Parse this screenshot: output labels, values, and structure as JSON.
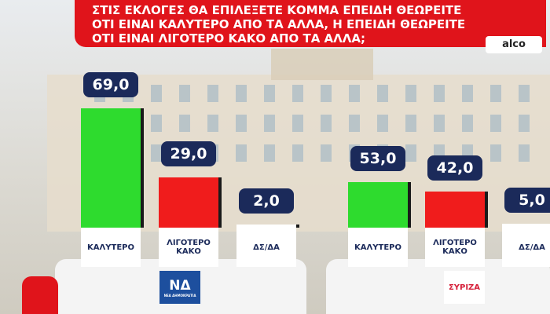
{
  "chart_data": {
    "type": "bar",
    "title": [
      "ΣΤΙΣ ΕΚΛΟΓΕΣ ΘΑ ΕΠΙΛΕΞΕΤΕ ΚΟΜΜΑ ΕΠΕΙΔΗ ΘΕΩΡΕΙΤΕ",
      "ΟΤΙ ΕΙΝΑΙ ΚΑΛΥΤΕΡΟ ΑΠΟ ΤΑ ΑΛΛΑ, Η ΕΠΕΙΔΗ ΘΕΩΡΕΙΤΕ",
      "ΟΤΙ ΕΙΝΑΙ ΛΙΓΟΤΕΡΟ ΚΑΚΟ ΑΠΟ ΤΑ ΑΛΛΑ;"
    ],
    "source": "alco",
    "groups": [
      {
        "name": "ΝΔ",
        "subtitle": "ΝΕΑ ΔΗΜΟΚΡΑΤΙΑ",
        "logo_color": "#1d4f9e",
        "categories": [
          "ΚΑΛΥΤΕΡΟ",
          "ΛΙΓΟΤΕΡΟ ΚΑΚΟ",
          "ΔΣ/ΔΑ"
        ],
        "values": [
          69,
          29,
          2
        ],
        "value_labels": [
          "69,0",
          "29,0",
          "2,0"
        ],
        "colors": [
          "#2edb2e",
          "#f01c1c",
          "#ffffff"
        ]
      },
      {
        "name": "ΣΥΡΙΖΑ",
        "logo_color": "#d6203a",
        "categories": [
          "ΚΑΛΥΤΕΡΟ",
          "ΛΙΓΟΤΕΡΟ ΚΑΚΟ",
          "ΔΣ/ΔΑ"
        ],
        "values": [
          53,
          42,
          5
        ],
        "value_labels": [
          "53,0",
          "42,0",
          "5,0"
        ],
        "colors": [
          "#2edb2e",
          "#f01c1c",
          "#ffffff"
        ]
      }
    ]
  }
}
